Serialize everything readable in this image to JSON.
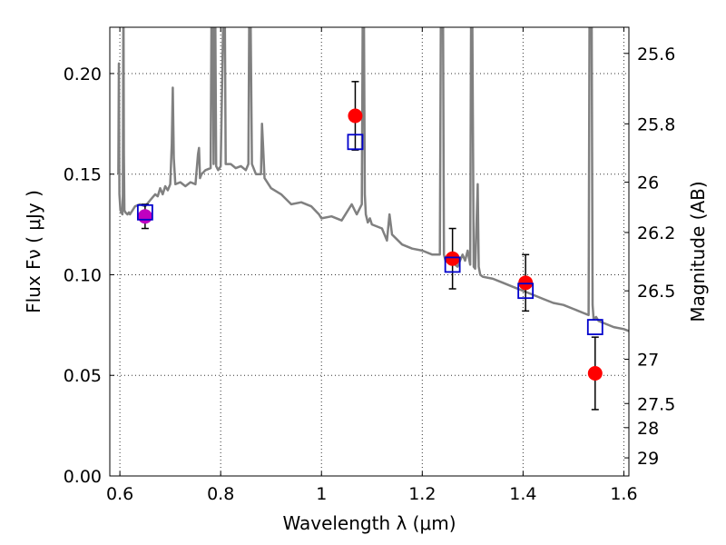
{
  "chart_data": {
    "type": "scatter",
    "title": "",
    "xlabel": "Wavelength  λ (μm)",
    "ylabel": "Flux  Fν  ( μJy )",
    "y2label": "Magnitude (AB)",
    "xlim": [
      0.58,
      1.61
    ],
    "ylim": [
      0.0,
      0.223
    ],
    "grid": true,
    "xticks": [
      0.6,
      0.8,
      1.0,
      1.2,
      1.4,
      1.6
    ],
    "xtick_labels": [
      "0.6",
      "0.8",
      "1",
      "1.2",
      "1.4",
      "1.6"
    ],
    "yticks": [
      0.0,
      0.05,
      0.1,
      0.15,
      0.2
    ],
    "ytick_labels": [
      "0.00",
      "0.05",
      "0.10",
      "0.15",
      "0.20"
    ],
    "y2ticks": [
      {
        "label": "25.6",
        "flux": 0.21
      },
      {
        "label": "25.8",
        "flux": 0.175
      },
      {
        "label": "26",
        "flux": 0.146
      },
      {
        "label": "26.2",
        "flux": 0.121
      },
      {
        "label": "26.5",
        "flux": 0.092
      },
      {
        "label": "27",
        "flux": 0.058
      },
      {
        "label": "27.5",
        "flux": 0.036
      },
      {
        "label": "28",
        "flux": 0.024
      },
      {
        "label": "29",
        "flux": 0.009
      }
    ],
    "colors": {
      "model": "#808080",
      "observed": "#ff0000",
      "model_points": "#0000cc",
      "errorbars": "#000000",
      "overlap": "#c000c0"
    },
    "series": [
      {
        "name": "Model spectrum",
        "kind": "line",
        "x": [
          0.597,
          0.598,
          0.599,
          0.601,
          0.603,
          0.605,
          0.606,
          0.607,
          0.608,
          0.609,
          0.611,
          0.615,
          0.618,
          0.62,
          0.625,
          0.63,
          0.64,
          0.65,
          0.66,
          0.67,
          0.675,
          0.68,
          0.685,
          0.69,
          0.695,
          0.7,
          0.703,
          0.705,
          0.707,
          0.71,
          0.72,
          0.73,
          0.74,
          0.75,
          0.755,
          0.757,
          0.759,
          0.762,
          0.77,
          0.78,
          0.782,
          0.784,
          0.786,
          0.787,
          0.789,
          0.791,
          0.795,
          0.8,
          0.806,
          0.808,
          0.81,
          0.82,
          0.83,
          0.84,
          0.85,
          0.855,
          0.857,
          0.859,
          0.862,
          0.87,
          0.88,
          0.882,
          0.884,
          0.887,
          0.9,
          0.92,
          0.94,
          0.96,
          0.98,
          0.995,
          1.0,
          1.02,
          1.04,
          1.06,
          1.07,
          1.08,
          1.082,
          1.084,
          1.086,
          1.088,
          1.092,
          1.096,
          1.1,
          1.12,
          1.13,
          1.135,
          1.14,
          1.16,
          1.18,
          1.2,
          1.22,
          1.235,
          1.237,
          1.239,
          1.241,
          1.243,
          1.246,
          1.26,
          1.27,
          1.28,
          1.285,
          1.29,
          1.295,
          1.297,
          1.299,
          1.302,
          1.305,
          1.31,
          1.312,
          1.315,
          1.32,
          1.34,
          1.36,
          1.38,
          1.4,
          1.42,
          1.44,
          1.46,
          1.48,
          1.5,
          1.52,
          1.53,
          1.532,
          1.534,
          1.536,
          1.538,
          1.54,
          1.545,
          1.55,
          1.56,
          1.58,
          1.6,
          1.61
        ],
        "y": [
          0.15,
          0.205,
          0.14,
          0.132,
          0.131,
          0.13,
          0.14,
          0.245,
          0.16,
          0.132,
          0.131,
          0.13,
          0.131,
          0.13,
          0.132,
          0.134,
          0.135,
          0.134,
          0.137,
          0.14,
          0.139,
          0.143,
          0.14,
          0.144,
          0.142,
          0.145,
          0.165,
          0.193,
          0.158,
          0.145,
          0.146,
          0.144,
          0.146,
          0.145,
          0.16,
          0.163,
          0.148,
          0.15,
          0.152,
          0.153,
          0.24,
          0.24,
          0.155,
          0.24,
          0.24,
          0.154,
          0.152,
          0.154,
          0.24,
          0.24,
          0.155,
          0.155,
          0.153,
          0.154,
          0.152,
          0.155,
          0.24,
          0.24,
          0.155,
          0.15,
          0.15,
          0.175,
          0.165,
          0.148,
          0.143,
          0.14,
          0.135,
          0.136,
          0.134,
          0.13,
          0.128,
          0.129,
          0.127,
          0.135,
          0.13,
          0.135,
          0.24,
          0.24,
          0.14,
          0.13,
          0.126,
          0.128,
          0.125,
          0.123,
          0.117,
          0.13,
          0.12,
          0.115,
          0.113,
          0.112,
          0.11,
          0.11,
          0.24,
          0.24,
          0.24,
          0.11,
          0.107,
          0.106,
          0.104,
          0.11,
          0.107,
          0.112,
          0.105,
          0.24,
          0.24,
          0.104,
          0.103,
          0.145,
          0.104,
          0.1,
          0.099,
          0.098,
          0.096,
          0.094,
          0.092,
          0.09,
          0.088,
          0.086,
          0.085,
          0.083,
          0.081,
          0.08,
          0.24,
          0.24,
          0.24,
          0.085,
          0.078,
          0.079,
          0.077,
          0.076,
          0.074,
          0.073,
          0.072
        ]
      },
      {
        "name": "Observed photometry",
        "kind": "errorbar",
        "x": [
          0.65,
          1.067,
          1.26,
          1.405,
          1.543
        ],
        "y": [
          0.129,
          0.179,
          0.108,
          0.096,
          0.051
        ],
        "err": [
          0.006,
          0.017,
          0.015,
          0.014,
          0.018
        ]
      },
      {
        "name": "Model synthetic photometry",
        "kind": "scatter",
        "x": [
          0.65,
          1.067,
          1.26,
          1.405,
          1.543
        ],
        "y": [
          0.131,
          0.166,
          0.105,
          0.092,
          0.074
        ]
      }
    ]
  }
}
